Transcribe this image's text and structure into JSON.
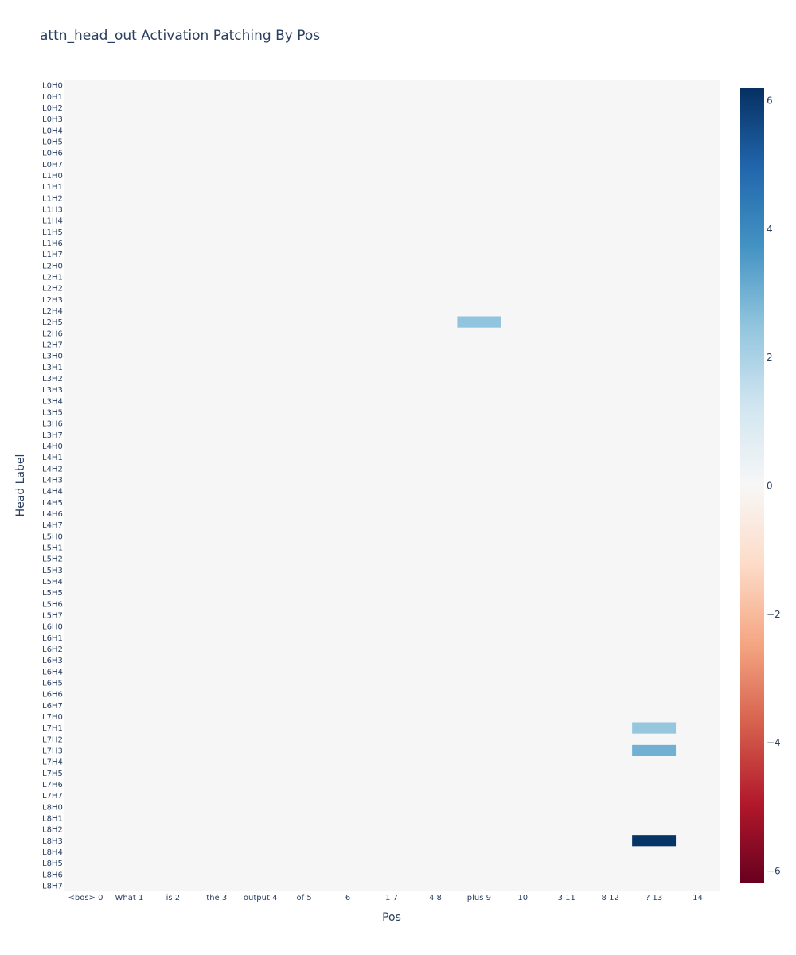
{
  "chart_data": {
    "type": "heatmap",
    "title": "attn_head_out Activation Patching By Pos",
    "xlabel": "Pos",
    "ylabel": "Head Label",
    "x_categories": [
      "<bos> 0",
      "What 1",
      "is 2",
      "the 3",
      "output 4",
      "of 5",
      "6",
      "1 7",
      "4 8",
      "plus 9",
      "10",
      "3 11",
      "8 12",
      "? 13",
      "14"
    ],
    "y_categories": [
      "L0H0",
      "L0H1",
      "L0H2",
      "L0H3",
      "L0H4",
      "L0H5",
      "L0H6",
      "L0H7",
      "L1H0",
      "L1H1",
      "L1H2",
      "L1H3",
      "L1H4",
      "L1H5",
      "L1H6",
      "L1H7",
      "L2H0",
      "L2H1",
      "L2H2",
      "L2H3",
      "L2H4",
      "L2H5",
      "L2H6",
      "L2H7",
      "L3H0",
      "L3H1",
      "L3H2",
      "L3H3",
      "L3H4",
      "L3H5",
      "L3H6",
      "L3H7",
      "L4H0",
      "L4H1",
      "L4H2",
      "L4H3",
      "L4H4",
      "L4H5",
      "L4H6",
      "L4H7",
      "L5H0",
      "L5H1",
      "L5H2",
      "L5H3",
      "L5H4",
      "L5H5",
      "L5H6",
      "L5H7",
      "L6H0",
      "L6H1",
      "L6H2",
      "L6H3",
      "L6H4",
      "L6H5",
      "L6H6",
      "L6H7",
      "L7H0",
      "L7H1",
      "L7H2",
      "L7H3",
      "L7H4",
      "L7H5",
      "L7H6",
      "L7H7",
      "L8H0",
      "L8H1",
      "L8H2",
      "L8H3",
      "L8H4",
      "L8H5",
      "L8H6",
      "L8H7"
    ],
    "default_value": 0,
    "nonzero_cells": [
      {
        "y": "L2H5",
        "x": "plus 9",
        "value": 2.5
      },
      {
        "y": "L7H1",
        "x": "? 13",
        "value": 2.4
      },
      {
        "y": "L7H3",
        "x": "? 13",
        "value": 3.0
      },
      {
        "y": "L8H3",
        "x": "? 13",
        "value": 6.1
      }
    ],
    "colorbar": {
      "range": [
        -6.2,
        6.2
      ],
      "ticks": [
        6,
        4,
        2,
        0,
        -2,
        -4,
        -6
      ],
      "tick_labels": [
        "6",
        "4",
        "2",
        "0",
        "−2",
        "−4",
        "−6"
      ],
      "colorscale": "RdBu"
    },
    "colors": {
      "background": "#f6f6f6",
      "text": "#2a3f5f"
    }
  }
}
